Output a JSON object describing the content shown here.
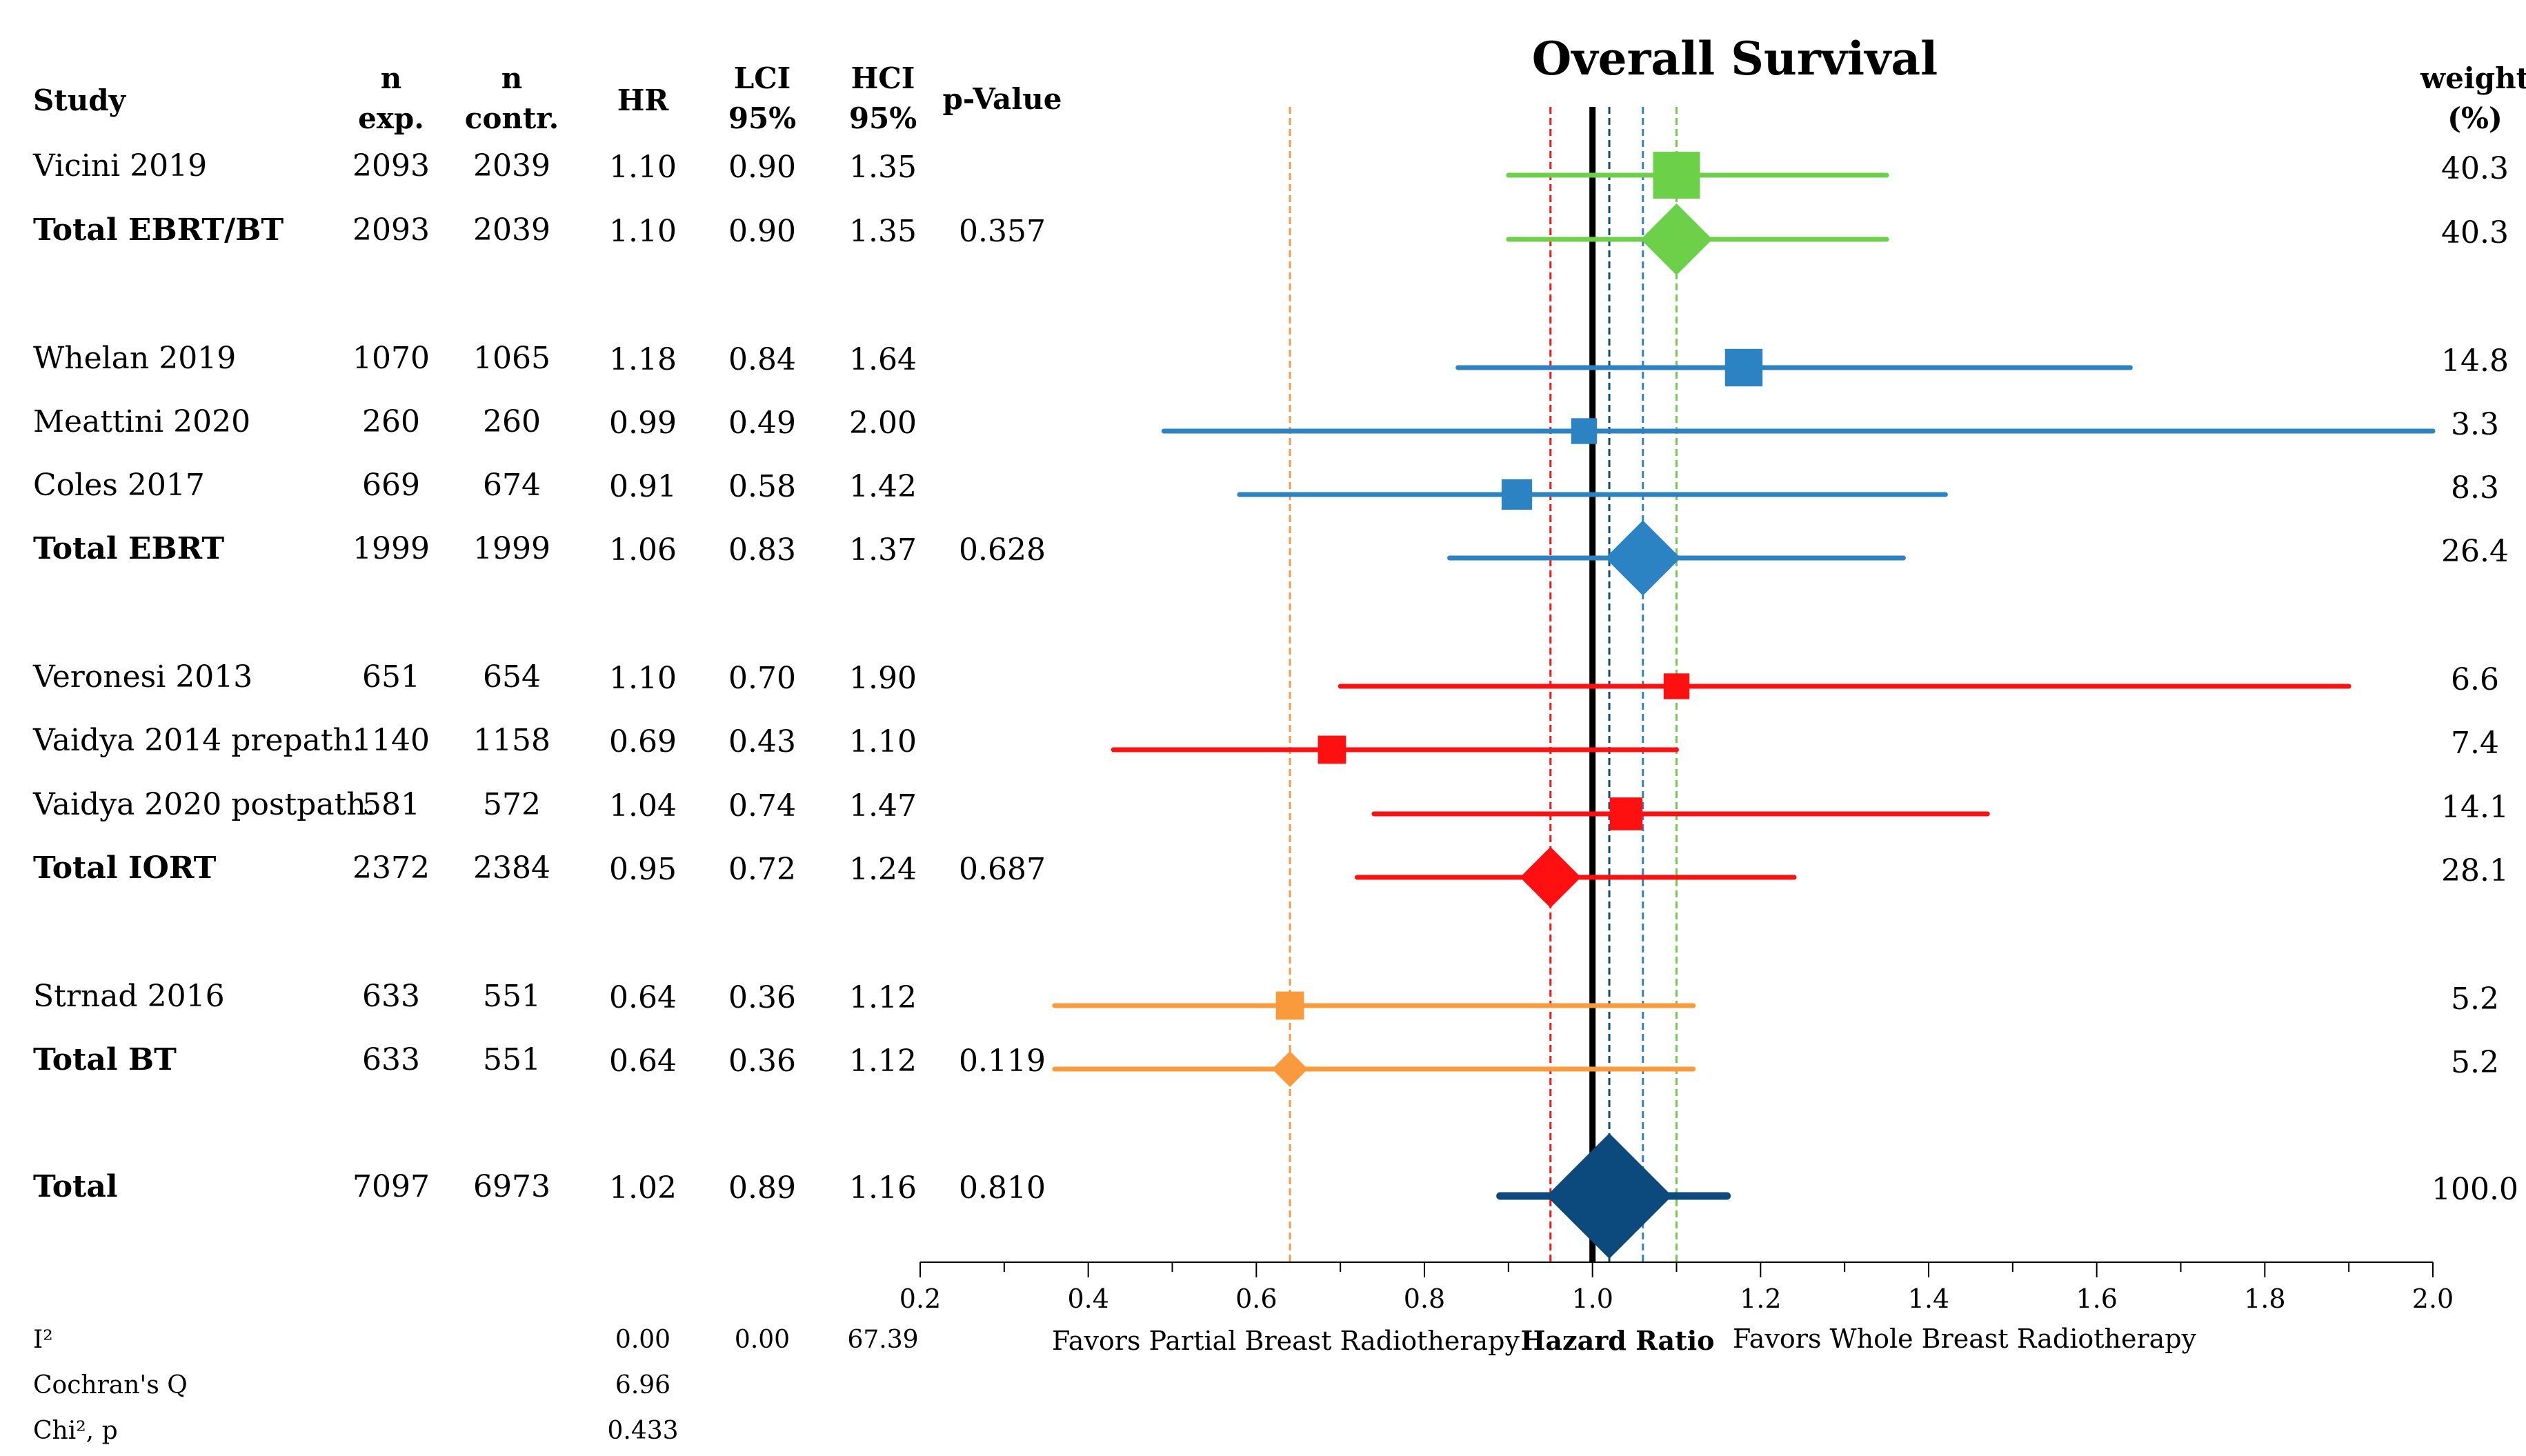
{
  "chart_data": {
    "type": "forest",
    "title": "Overall Survival",
    "headers": {
      "study": "Study",
      "n_exp": [
        "n",
        "exp."
      ],
      "n_contr": [
        "n",
        "contr."
      ],
      "hr": "HR",
      "lci": [
        "LCI",
        "95%"
      ],
      "hci": [
        "HCI",
        "95%"
      ],
      "pvalue": "p-Value",
      "weight": [
        "weight",
        "(%)"
      ]
    },
    "colors": {
      "ebrt_bt": "#6cd148",
      "ebrt": "#2b83c4",
      "iort": "#ff1010",
      "bt": "#f99a3d",
      "total": "#0c4a7e",
      "reference": "#000000"
    },
    "rows": [
      {
        "study": "Vicini 2019",
        "n_exp": "2093",
        "n_contr": "2039",
        "hr": 1.1,
        "lci": 0.9,
        "hci": 1.35,
        "hr_text": "1.10",
        "lci_text": "0.90",
        "hci_text": "1.35",
        "p": "",
        "weight": "40.3",
        "group": "ebrt_bt",
        "kind": "study",
        "bold": false,
        "marker_size": 1.0
      },
      {
        "study": "Total EBRT/BT",
        "n_exp": "2093",
        "n_contr": "2039",
        "hr": 1.1,
        "lci": 0.9,
        "hci": 1.35,
        "hr_text": "1.10",
        "lci_text": "0.90",
        "hci_text": "1.35",
        "p": "0.357",
        "weight": "40.3",
        "group": "ebrt_bt",
        "kind": "total",
        "bold": true,
        "marker_size": 1.0
      },
      {
        "study": "Whelan 2019",
        "n_exp": "1070",
        "n_contr": "1065",
        "hr": 1.18,
        "lci": 0.84,
        "hci": 1.64,
        "hr_text": "1.18",
        "lci_text": "0.84",
        "hci_text": "1.64",
        "p": "",
        "weight": "14.8",
        "group": "ebrt",
        "kind": "study",
        "bold": false,
        "marker_size": 0.8
      },
      {
        "study": "Meattini 2020",
        "n_exp": "260",
        "n_contr": "260",
        "hr": 0.99,
        "lci": 0.49,
        "hci": 2.0,
        "hr_text": "0.99",
        "lci_text": "0.49",
        "hci_text": "2.00",
        "p": "",
        "weight": "3.3",
        "group": "ebrt",
        "kind": "study",
        "bold": false,
        "marker_size": 0.55
      },
      {
        "study": "Coles 2017",
        "n_exp": "669",
        "n_contr": "674",
        "hr": 0.91,
        "lci": 0.58,
        "hci": 1.42,
        "hr_text": "0.91",
        "lci_text": "0.58",
        "hci_text": "1.42",
        "p": "",
        "weight": "8.3",
        "group": "ebrt",
        "kind": "study",
        "bold": false,
        "marker_size": 0.65
      },
      {
        "study": "Total EBRT",
        "n_exp": "1999",
        "n_contr": "1999",
        "hr": 1.06,
        "lci": 0.83,
        "hci": 1.37,
        "hr_text": "1.06",
        "lci_text": "0.83",
        "hci_text": "1.37",
        "p": "0.628",
        "weight": "26.4",
        "group": "ebrt",
        "kind": "total",
        "bold": true,
        "marker_size": 1.05
      },
      {
        "study": "Veronesi 2013",
        "n_exp": "651",
        "n_contr": "654",
        "hr": 1.1,
        "lci": 0.7,
        "hci": 1.9,
        "hr_text": "1.10",
        "lci_text": "0.70",
        "hci_text": "1.90",
        "p": "",
        "weight": "6.6",
        "group": "iort",
        "kind": "study",
        "bold": false,
        "marker_size": 0.55
      },
      {
        "study": "Vaidya 2014 prepath.",
        "n_exp": "1140",
        "n_contr": "1158",
        "hr": 0.69,
        "lci": 0.43,
        "hci": 1.1,
        "hr_text": "0.69",
        "lci_text": "0.43",
        "hci_text": "1.10",
        "p": "",
        "weight": "7.4",
        "group": "iort",
        "kind": "study",
        "bold": false,
        "marker_size": 0.6
      },
      {
        "study": "Vaidya 2020 postpath.",
        "n_exp": "581",
        "n_contr": "572",
        "hr": 1.04,
        "lci": 0.74,
        "hci": 1.47,
        "hr_text": "1.04",
        "lci_text": "0.74",
        "hci_text": "1.47",
        "p": "",
        "weight": "14.1",
        "group": "iort",
        "kind": "study",
        "bold": false,
        "marker_size": 0.7
      },
      {
        "study": "Total IORT",
        "n_exp": "2372",
        "n_contr": "2384",
        "hr": 0.95,
        "lci": 0.72,
        "hci": 1.24,
        "hr_text": "0.95",
        "lci_text": "0.72",
        "hci_text": "1.24",
        "p": "0.687",
        "weight": "28.1",
        "group": "iort",
        "kind": "total",
        "bold": true,
        "marker_size": 0.85
      },
      {
        "study": "Strnad 2016",
        "n_exp": "633",
        "n_contr": "551",
        "hr": 0.64,
        "lci": 0.36,
        "hci": 1.12,
        "hr_text": "0.64",
        "lci_text": "0.36",
        "hci_text": "1.12",
        "p": "",
        "weight": "5.2",
        "group": "bt",
        "kind": "study",
        "bold": false,
        "marker_size": 0.6
      },
      {
        "study": "Total BT",
        "n_exp": "633",
        "n_contr": "551",
        "hr": 0.64,
        "lci": 0.36,
        "hci": 1.12,
        "hr_text": "0.64",
        "lci_text": "0.36",
        "hci_text": "1.12",
        "p": "0.119",
        "weight": "5.2",
        "group": "bt",
        "kind": "total",
        "bold": true,
        "marker_size": 0.5
      },
      {
        "study": "Total",
        "n_exp": "7097",
        "n_contr": "6973",
        "hr": 1.02,
        "lci": 0.89,
        "hci": 1.16,
        "hr_text": "1.02",
        "lci_text": "0.89",
        "hci_text": "1.16",
        "p": "0.810",
        "weight": "100.0",
        "group": "total",
        "kind": "total",
        "bold": true,
        "marker_size": 1.75
      }
    ],
    "reference_lines": [
      {
        "value": 1.0,
        "group": "reference"
      },
      {
        "value": 1.02,
        "group": "total"
      },
      {
        "value": 1.1,
        "group": "ebrt_bt"
      },
      {
        "value": 1.06,
        "group": "ebrt"
      },
      {
        "value": 0.95,
        "group": "iort"
      },
      {
        "value": 0.64,
        "group": "bt"
      }
    ],
    "xaxis": {
      "label": "Hazard Ratio",
      "min": 0.2,
      "max": 2.0,
      "ticks": [
        "0.2",
        "0.4",
        "0.6",
        "0.8",
        "1.0",
        "1.2",
        "1.4",
        "1.6",
        "1.8",
        "2.0"
      ],
      "left_note": "Favors Partial Breast Radiotherapy",
      "right_note": "Favors Whole Breast Radiotherapy"
    },
    "heterogeneity": {
      "i2_label": "I²",
      "i2_values": [
        "0.00",
        "0.00",
        "67.39"
      ],
      "q_label": "Cochran's Q",
      "q_value": "6.96",
      "chi_label": "Chi², p",
      "chi_value": "0.433"
    }
  }
}
